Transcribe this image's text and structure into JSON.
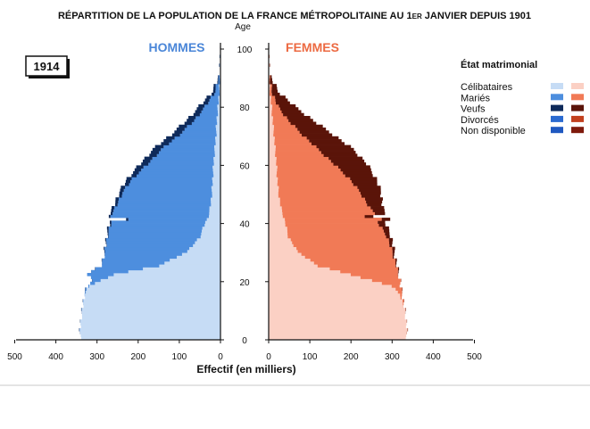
{
  "chart_data": {
    "type": "population-pyramid",
    "title_main": "RÉPARTITION DE LA POPULATION DE LA FRANCE MÉTROPOLITAINE AU 1",
    "title_superscript": "ER",
    "title_tail": " JANVIER DEPUIS 1901",
    "year_label": "1914",
    "men_label": "HOMMES",
    "women_label": "FEMMES",
    "age_axis_label": "Age",
    "xlabel": "Effectif  (en milliers)",
    "age_ticks": [
      0,
      20,
      40,
      60,
      80,
      100
    ],
    "x_ticks": [
      500,
      400,
      300,
      200,
      100,
      0
    ],
    "x_ticks_women": [
      0,
      100,
      200,
      300,
      400,
      500
    ],
    "xlim": [
      0,
      500
    ],
    "ylim": [
      0,
      100
    ],
    "legend": {
      "title": "État matrimonial",
      "placement": "right",
      "items": [
        {
          "label": "Célibataires",
          "men_color": "#c6dcf5",
          "women_color": "#fbd0c4"
        },
        {
          "label": "Mariés",
          "men_color": "#4d8ede",
          "women_color": "#f17a56"
        },
        {
          "label": "Veufs",
          "men_color": "#0e2a5a",
          "women_color": "#5a1409"
        },
        {
          "label": "Divorcés",
          "men_color": "#2a6ad0",
          "women_color": "#c2401e"
        },
        {
          "label": "Non disponible",
          "men_color": "#1f58c0",
          "women_color": "#7e1a0c"
        }
      ]
    },
    "series_labels": [
      "Célibataires",
      "Mariés",
      "Veufs"
    ],
    "ages": [
      0,
      5,
      10,
      15,
      18,
      20,
      22,
      25,
      30,
      35,
      40,
      41,
      42,
      43,
      45,
      50,
      55,
      60,
      65,
      70,
      75,
      80,
      85,
      90
    ],
    "men": {
      "single": [
        340,
        340,
        335,
        330,
        320,
        290,
        260,
        150,
        80,
        50,
        37,
        32,
        30,
        28,
        25,
        21,
        19,
        17,
        14,
        11,
        9,
        6,
        3,
        1
      ],
      "married": [
        0,
        0,
        0,
        1,
        3,
        20,
        65,
        140,
        200,
        225,
        228,
        190,
        240,
        235,
        230,
        218,
        195,
        160,
        130,
        90,
        55,
        30,
        10,
        2
      ],
      "widowed": [
        0,
        0,
        0,
        0,
        0,
        0,
        0,
        0,
        1,
        2,
        4,
        5,
        5,
        5,
        6,
        8,
        12,
        18,
        20,
        20,
        18,
        14,
        6,
        1
      ]
    },
    "women": {
      "single": [
        335,
        335,
        330,
        320,
        300,
        250,
        200,
        120,
        70,
        48,
        40,
        38,
        36,
        34,
        30,
        24,
        21,
        19,
        16,
        13,
        10,
        7,
        3,
        1
      ],
      "married": [
        0,
        0,
        0,
        5,
        20,
        70,
        115,
        190,
        230,
        240,
        225,
        235,
        200,
        225,
        215,
        200,
        175,
        140,
        105,
        70,
        38,
        15,
        5,
        1
      ],
      "widowed": [
        0,
        0,
        0,
        0,
        0,
        0,
        1,
        2,
        5,
        10,
        18,
        20,
        22,
        25,
        32,
        50,
        65,
        80,
        85,
        75,
        60,
        40,
        15,
        3
      ]
    }
  }
}
